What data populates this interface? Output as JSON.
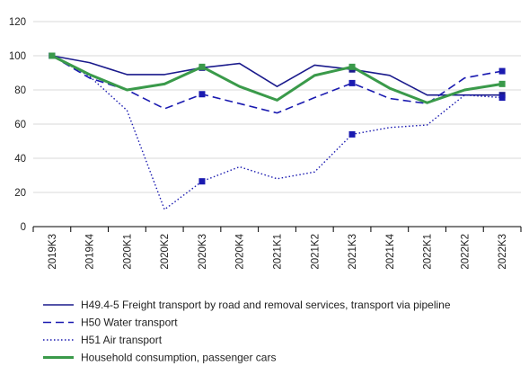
{
  "chart_data": {
    "type": "line",
    "title": "",
    "xlabel": "",
    "ylabel": "",
    "ylim": [
      0,
      120
    ],
    "yticks": [
      0,
      20,
      40,
      60,
      80,
      100,
      120
    ],
    "grid": "horizontal",
    "legend_position": "bottom",
    "categories": [
      "2019K3",
      "2019K4",
      "2020K1",
      "2020K2",
      "2020K3",
      "2020K4",
      "2021K1",
      "2021K2",
      "2021K3",
      "2021K4",
      "2022K1",
      "2022K2",
      "2022K3"
    ],
    "series": [
      {
        "name": "H49.4-5 Freight transport by road and removal services, transport via pipeline",
        "values": [
          100,
          96,
          89,
          89,
          93,
          95.5,
          82,
          94.5,
          92,
          88.5,
          77,
          77,
          77
        ],
        "color": "#1a1a8c",
        "dash": "solid",
        "marker_indices": [
          0,
          4,
          8,
          12
        ]
      },
      {
        "name": "H50 Water transport",
        "values": [
          100,
          87,
          80,
          69,
          77.5,
          72,
          66.5,
          75.5,
          84,
          75,
          72,
          87,
          91
        ],
        "color": "#1a1ab0",
        "dash": "dashed",
        "marker_indices": [
          0,
          4,
          8,
          12
        ]
      },
      {
        "name": "H51 Air transport",
        "values": [
          100,
          88,
          68,
          10,
          26.5,
          35,
          28,
          32,
          54,
          58,
          59.5,
          77,
          75.5
        ],
        "color": "#1a1ab0",
        "dash": "dotted",
        "marker_indices": [
          0,
          4,
          8,
          12
        ]
      },
      {
        "name": "Household consumption, passenger cars",
        "values": [
          100,
          89,
          80,
          83.5,
          93.5,
          82,
          74,
          88.5,
          93.5,
          81,
          72.5,
          80,
          83.5
        ],
        "color": "#3a9a4a",
        "dash": "solid",
        "marker_indices": [
          0,
          4,
          8,
          12
        ]
      }
    ]
  }
}
